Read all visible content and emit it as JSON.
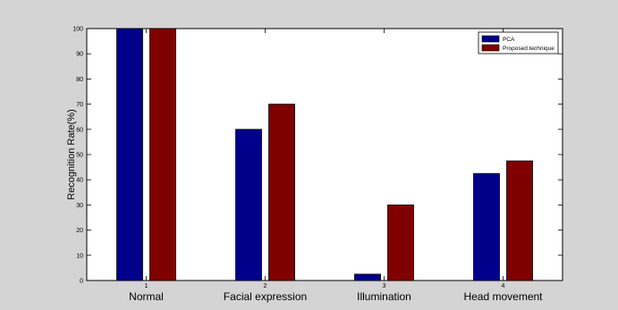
{
  "colors": {
    "figure_background": "#d4d4d4",
    "axes_background": "#ffffff",
    "pca": "#00008b",
    "proposed": "#800000"
  },
  "chart_data": {
    "type": "bar",
    "xlabel": "",
    "ylabel": "Recognition Rate(%)",
    "ylim": [
      0,
      100
    ],
    "yticks": [
      0,
      10,
      20,
      30,
      40,
      50,
      60,
      70,
      80,
      90,
      100
    ],
    "x": [
      1,
      2,
      3,
      4
    ],
    "xtick_labels": [
      "1",
      "2",
      "3",
      "4"
    ],
    "categories": [
      "Normal",
      "Facial expression",
      "Illumination",
      "Head movement"
    ],
    "series": [
      {
        "name": "PCA",
        "color": "#00008b",
        "values": [
          100,
          60,
          2.5,
          42.5
        ]
      },
      {
        "name": "Proposed technique",
        "color": "#800000",
        "values": [
          100,
          70,
          30,
          47.5
        ]
      }
    ],
    "grid": false,
    "legend_position": "top-right"
  }
}
